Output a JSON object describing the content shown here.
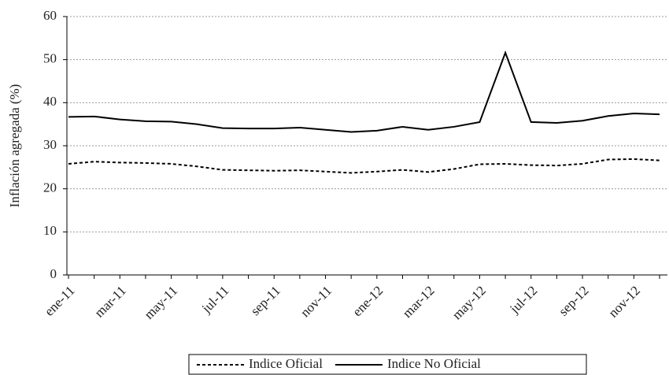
{
  "chart_data": {
    "type": "line",
    "y_label": "Inflación agregada (%)",
    "categories": [
      "ene-11",
      null,
      "mar-11",
      null,
      "may-11",
      null,
      "jul-11",
      null,
      "sep-11",
      null,
      "nov-11",
      null,
      "ene-12",
      null,
      "mar-12",
      null,
      "may-12",
      null,
      "jul-12",
      null,
      "sep-12",
      null,
      "nov-12",
      null
    ],
    "series": [
      {
        "name": "Indice Oficial",
        "color": "#000000",
        "dash": "dashed",
        "values": [
          25.8,
          26.3,
          26.1,
          26.0,
          25.8,
          25.2,
          24.4,
          24.3,
          24.2,
          24.3,
          24.0,
          23.7,
          24.0,
          24.4,
          23.9,
          24.6,
          25.7,
          25.8,
          25.5,
          25.4,
          25.8,
          26.8,
          26.9,
          26.6
        ]
      },
      {
        "name": "Indice No Oficial",
        "color": "#000000",
        "dash": "solid",
        "values": [
          36.7,
          36.8,
          36.1,
          35.7,
          35.6,
          35.0,
          34.1,
          34.0,
          34.0,
          34.2,
          33.7,
          33.2,
          33.5,
          34.4,
          33.7,
          34.4,
          35.5,
          51.6,
          35.5,
          35.3,
          35.8,
          36.9,
          37.5,
          37.3
        ]
      }
    ],
    "ylim": [
      0,
      60
    ],
    "yticks": [
      0,
      10,
      20,
      30,
      40,
      50,
      60
    ],
    "grid": true,
    "legend": "bottom"
  }
}
